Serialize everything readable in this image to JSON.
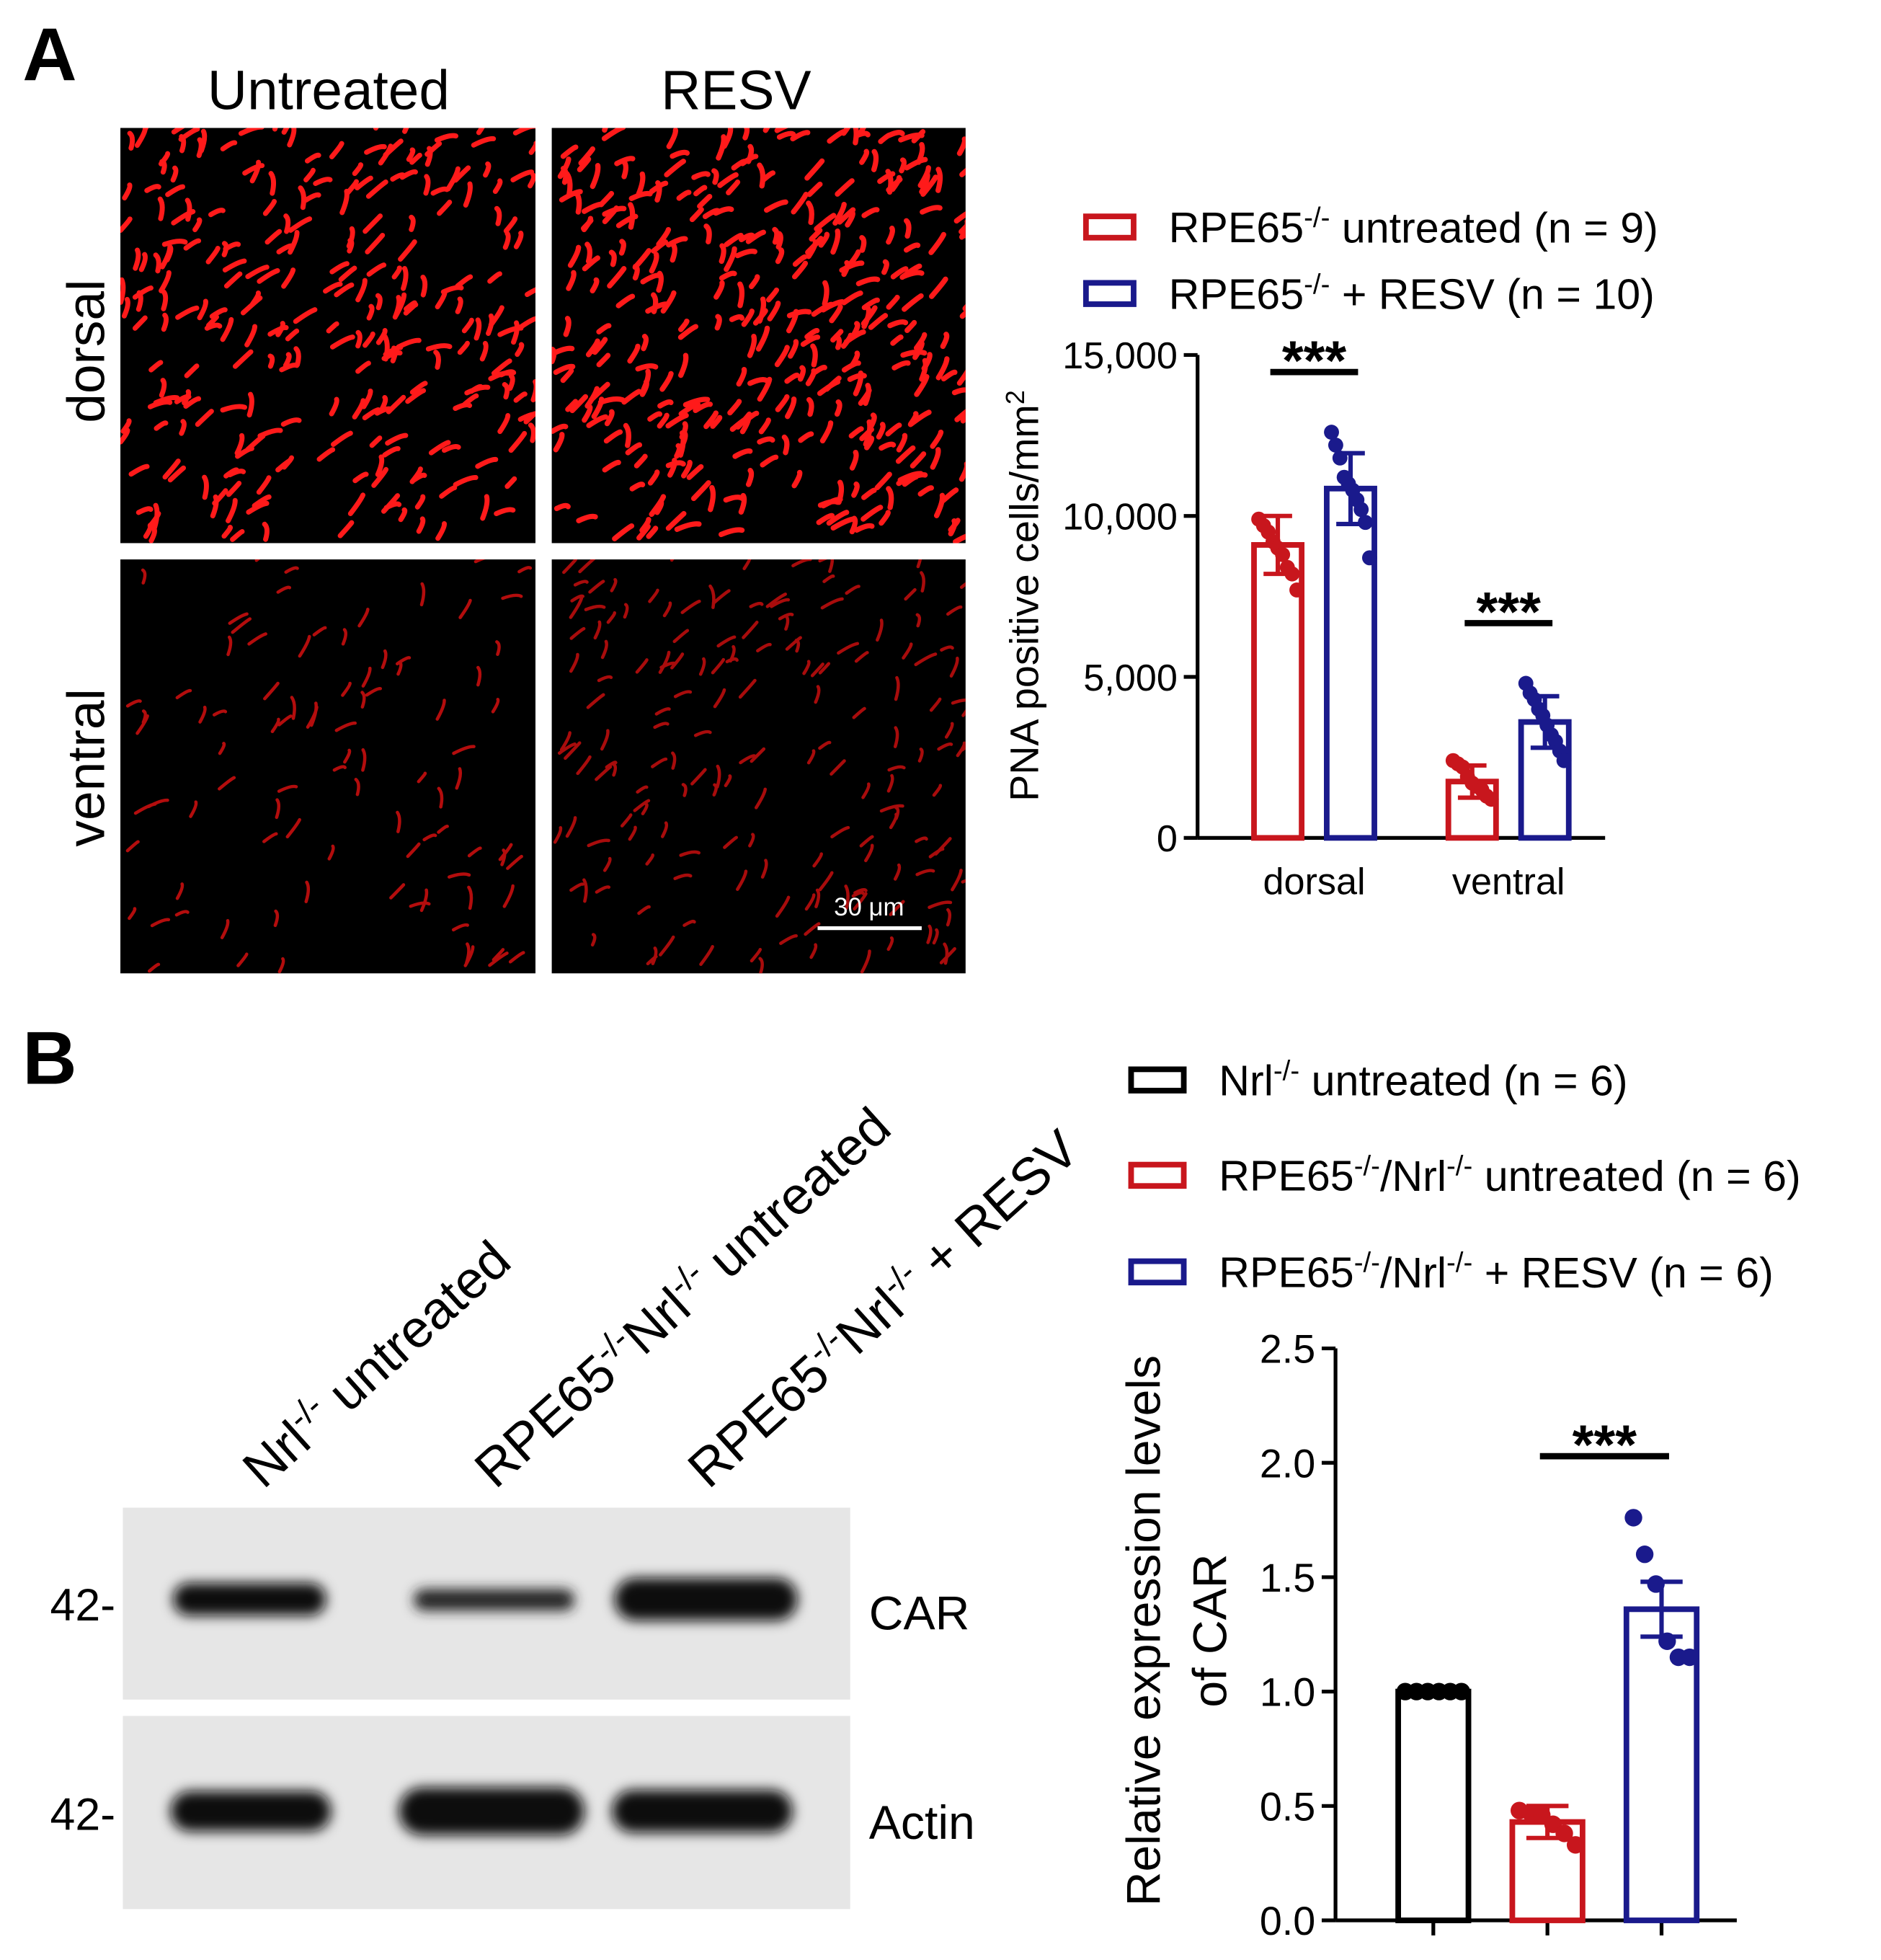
{
  "panel_labels": [
    "A",
    "B"
  ],
  "micrograph": {
    "columns": [
      "Untreated",
      "RESV"
    ],
    "rows": [
      "dorsal",
      "ventral"
    ],
    "scale_bar": "30 μm"
  },
  "blot": {
    "lanes": [
      [
        "Nrl",
        {
          "sup": "-/-"
        },
        " untreated"
      ],
      [
        "RPE65",
        {
          "sup": "-/-"
        },
        "Nrl",
        {
          "sup": "-/-"
        },
        " untreated"
      ],
      [
        "RPE65",
        {
          "sup": "-/-"
        },
        "Nrl",
        {
          "sup": "-/-"
        },
        " + RESV"
      ]
    ],
    "bands": [
      "CAR",
      "Actin"
    ],
    "markers": [
      "42-",
      "42-"
    ]
  },
  "chart_data": [
    {
      "type": "bar",
      "ylabel": [
        "PNA positive cells/mm",
        {
          "sup": "2"
        }
      ],
      "categories": [
        "dorsal",
        "ventral"
      ],
      "ylim": [
        0,
        15000
      ],
      "yticks": [
        0,
        {
          "value": 5000,
          "label": "5,000"
        },
        {
          "value": 10000,
          "label": "10,000"
        },
        {
          "value": 15000,
          "label": "15,000"
        }
      ],
      "series": [
        {
          "name": [
            "RPE65",
            {
              "sup": "-/-"
            },
            " untreated (n = 9)"
          ],
          "color": "#c8161d",
          "values": [
            9100,
            1750
          ],
          "errors": [
            900,
            500
          ],
          "points": [
            [
              9900,
              9700,
              9500,
              9200,
              9000,
              8800,
              8400,
              8200,
              7700
            ],
            [
              2400,
              2300,
              2200,
              1900,
              1700,
              1600,
              1500,
              1300,
              1200
            ]
          ]
        },
        {
          "name": [
            "RPE65",
            {
              "sup": "-/-"
            },
            " + RESV (n = 10)"
          ],
          "color": "#1a1a8c",
          "values": [
            10850,
            3600
          ],
          "errors": [
            1100,
            800
          ],
          "points": [
            [
              12600,
              12200,
              11800,
              11200,
              11000,
              10800,
              10500,
              10200,
              9800,
              8700
            ],
            [
              4800,
              4500,
              4300,
              4000,
              3800,
              3500,
              3200,
              3000,
              2700,
              2400
            ]
          ]
        }
      ],
      "annotations": [
        {
          "text": "***",
          "categories": [
            0
          ]
        },
        {
          "text": "***",
          "categories": [
            1
          ]
        }
      ]
    },
    {
      "type": "bar",
      "ylabel": [
        "Relative expression levels",
        "of CAR"
      ],
      "categories": [
        null,
        null,
        null
      ],
      "ylim": [
        0,
        2.5
      ],
      "yticks": [
        {
          "value": 0,
          "label": "0.0"
        },
        0.5,
        {
          "value": 1,
          "label": "1.0"
        },
        1.5,
        {
          "value": 2,
          "label": "2.0"
        },
        2.5
      ],
      "series": [
        {
          "name": [
            "Nrl",
            {
              "sup": "-/-"
            },
            " untreated (n = 6)"
          ],
          "color": "#000000",
          "values": [
            1.0,
            null,
            null
          ],
          "errors": [
            0,
            null,
            null
          ],
          "points": [
            [
              1,
              1,
              1,
              1,
              1,
              1
            ],
            null,
            null
          ]
        },
        {
          "name": [
            "RPE65",
            {
              "sup": "-/-"
            },
            "/Nrl",
            {
              "sup": "-/-"
            },
            " untreated (n = 6)"
          ],
          "color": "#c8161d",
          "values": [
            null,
            0.43,
            null
          ],
          "errors": [
            null,
            0.07,
            null
          ],
          "points": [
            null,
            [
              0.48,
              0.47,
              0.46,
              0.42,
              0.38,
              0.33
            ],
            null
          ]
        },
        {
          "name": [
            "RPE65",
            {
              "sup": "-/-"
            },
            "/Nrl",
            {
              "sup": "-/-"
            },
            " + RESV (n = 6)"
          ],
          "color": "#1a1a8c",
          "values": [
            null,
            null,
            1.36
          ],
          "errors": [
            null,
            null,
            0.12
          ],
          "points": [
            null,
            null,
            [
              1.76,
              1.6,
              1.47,
              1.22,
              1.15,
              1.15
            ]
          ]
        }
      ],
      "annotations": [
        {
          "text": "***",
          "categories": [
            1,
            2
          ]
        }
      ]
    }
  ]
}
